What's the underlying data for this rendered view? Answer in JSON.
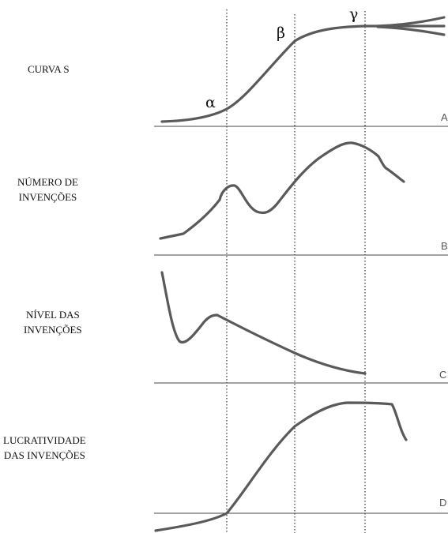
{
  "labels": {
    "a_line1": "CURVA S",
    "b_line1": "NÚMERO DE",
    "b_line2": "INVENÇÕES",
    "c_line1": "NÍVEL DAS",
    "c_line2": "INVENÇÕES",
    "d_line1": "LUCRATIVIDADE",
    "d_line2": "DAS INVENÇÕES"
  },
  "markers": {
    "alpha": "α",
    "beta": "β",
    "gamma": "γ"
  },
  "panels": {
    "a": "A",
    "b": "B",
    "c": "C",
    "d": "D"
  }
}
